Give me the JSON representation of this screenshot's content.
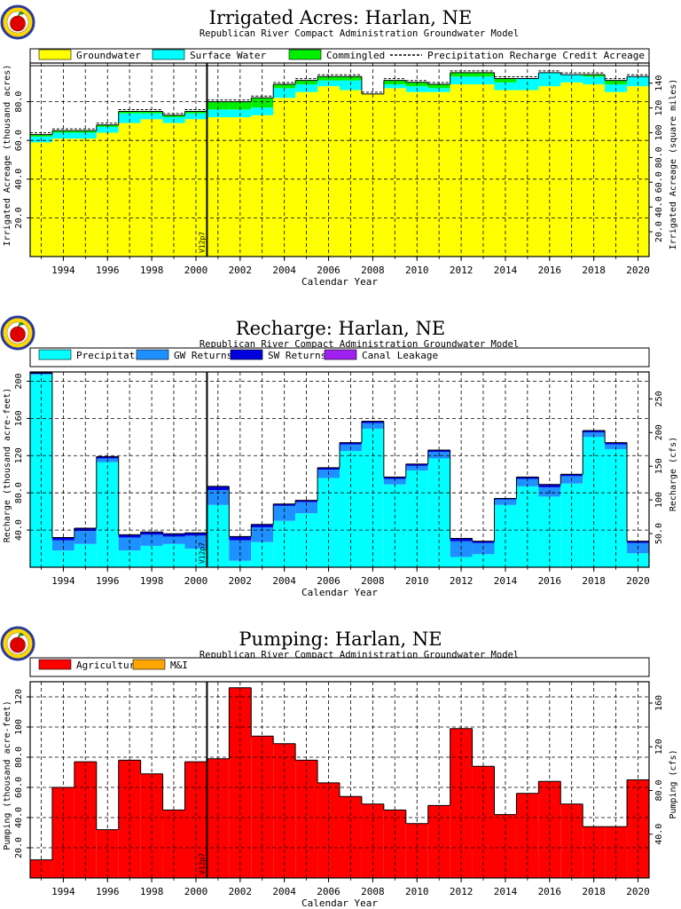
{
  "colors": {
    "groundwater": "#ffff00",
    "surface_water": "#00ffff",
    "commingled": "#00ee00",
    "precipitation": "#00ffff",
    "gw_returns": "#1e90ff",
    "sw_returns": "#0000dd",
    "canal_leakage": "#a020f0",
    "agricultural": "#ff0000",
    "mi": "#ffa500",
    "logo_ring": "#ffd700",
    "logo_outer": "#2a3a9a",
    "logo_apple": "#e00000"
  },
  "icons": [
    "apple-seal-icon"
  ],
  "marker_label": "V12p7",
  "chart_data": [
    {
      "type": "bar",
      "stacked": true,
      "title": "Irrigated  Acres:  Harlan,  NE",
      "subtitle": "Republican  River  Compact  Administration  Groundwater  Model",
      "xlabel": "Calendar  Year",
      "ylabel": "Irrigated  Acreage  (thousand  acres)",
      "y2label": "Irrigated  Acreage  (square  miles)",
      "ylim": [
        0,
        100
      ],
      "y2lim": [
        0,
        156.25
      ],
      "grid": true,
      "legend_position": "top",
      "yticks": [
        "20.0",
        "40.0",
        "60.0",
        "80.0"
      ],
      "y2ticks": [
        "20.0",
        "40.0",
        "60.0",
        "80.0",
        "100",
        "120",
        "140"
      ],
      "xticks": [
        "1994",
        "1996",
        "1998",
        "2000",
        "2002",
        "2004",
        "2006",
        "2008",
        "2010",
        "2012",
        "2014",
        "2016",
        "2018",
        "2020"
      ],
      "x": [
        1993,
        1994,
        1995,
        1996,
        1997,
        1998,
        1999,
        2000,
        2001,
        2002,
        2003,
        2004,
        2005,
        2006,
        2007,
        2008,
        2009,
        2010,
        2011,
        2012,
        2013,
        2014,
        2015,
        2016,
        2017,
        2018,
        2019,
        2020
      ],
      "series": [
        {
          "name": "Groundwater",
          "color_key": "groundwater",
          "values": [
            59,
            61,
            61,
            64,
            69,
            71,
            69,
            71,
            72,
            72,
            73,
            82,
            85,
            88,
            86,
            84,
            87,
            85,
            85,
            89,
            89,
            86,
            86,
            88,
            90,
            89,
            85,
            88
          ]
        },
        {
          "name": "Surface Water",
          "color_key": "surface_water",
          "values": [
            3,
            3,
            3,
            3,
            5,
            3,
            3,
            3,
            4,
            4,
            4,
            5,
            4,
            3,
            5,
            0,
            2,
            3,
            2,
            4,
            4,
            4,
            6,
            7,
            4,
            4,
            4,
            5
          ]
        },
        {
          "name": "Commingled",
          "color_key": "commingled",
          "values": [
            1,
            1,
            1,
            1,
            1,
            1,
            1,
            1,
            4,
            4,
            5,
            2,
            2,
            2,
            2,
            0,
            2,
            2,
            2,
            2,
            2,
            2,
            0,
            0,
            0,
            1,
            2,
            0
          ]
        }
      ],
      "legend_extra": {
        "name": "Precipitation  Recharge  Credit  Acreage",
        "style": "dashed"
      }
    },
    {
      "type": "bar",
      "stacked": true,
      "title": "Recharge:  Harlan,  NE",
      "subtitle": "Republican  River  Compact  Administration  Groundwater  Model",
      "xlabel": "Calendar  Year",
      "ylabel": "Recharge  (thousand  acre-feet)",
      "y2label": "Recharge  (cfs)",
      "ylim": [
        0,
        210
      ],
      "y2lim": [
        0,
        290
      ],
      "grid": true,
      "legend_position": "top",
      "yticks": [
        "40.0",
        "80.0",
        "120",
        "160",
        "200"
      ],
      "y2ticks": [
        "50.0",
        "100",
        "150",
        "200",
        "250"
      ],
      "xticks": [
        "1994",
        "1996",
        "1998",
        "2000",
        "2002",
        "2004",
        "2006",
        "2008",
        "2010",
        "2012",
        "2014",
        "2016",
        "2018",
        "2020"
      ],
      "x": [
        1993,
        1994,
        1995,
        1996,
        1997,
        1998,
        1999,
        2000,
        2001,
        2002,
        2003,
        2004,
        2005,
        2006,
        2007,
        2008,
        2009,
        2010,
        2011,
        2012,
        2013,
        2014,
        2015,
        2016,
        2017,
        2018,
        2019,
        2020
      ],
      "series": [
        {
          "name": "Precipitation",
          "color_key": "precipitation",
          "values": [
            207,
            18,
            25,
            113,
            18,
            23,
            25,
            20,
            67,
            7,
            27,
            50,
            58,
            96,
            125,
            149,
            89,
            104,
            117,
            11,
            14,
            67,
            87,
            76,
            90,
            140,
            127,
            15
          ]
        },
        {
          "name": "GW Returns",
          "color_key": "gw_returns",
          "values": [
            1,
            11,
            14,
            4,
            14,
            12,
            8,
            14,
            16,
            22,
            16,
            16,
            12,
            9,
            7,
            6,
            6,
            5,
            7,
            17,
            12,
            6,
            8,
            10,
            8,
            5,
            5,
            11
          ]
        },
        {
          "name": "SW Returns",
          "color_key": "sw_returns",
          "values": [
            1,
            3,
            3,
            2,
            3,
            3,
            3,
            3,
            4,
            4,
            3,
            2,
            2,
            2,
            2,
            2,
            2,
            2,
            2,
            3,
            2,
            1,
            2,
            3,
            2,
            2,
            2,
            2
          ]
        },
        {
          "name": "Canal Leakage",
          "color_key": "canal_leakage",
          "values": [
            0,
            0,
            0,
            0,
            0,
            0,
            0,
            0,
            0,
            0,
            0,
            0,
            0,
            0,
            0,
            0,
            0,
            0,
            0,
            0,
            0,
            0,
            0,
            0,
            0,
            0,
            0,
            0
          ]
        }
      ]
    },
    {
      "type": "bar",
      "stacked": true,
      "title": "Pumping:  Harlan,  NE",
      "subtitle": "Republican  River  Compact  Administration  Groundwater  Model",
      "xlabel": "Calendar  Year",
      "ylabel": "Pumping  (thousand  acre-feet)",
      "y2label": "Pumping  (cfs)",
      "ylim": [
        0,
        130
      ],
      "y2lim": [
        0,
        179.5
      ],
      "grid": true,
      "legend_position": "top",
      "yticks": [
        "20.0",
        "40.0",
        "60.0",
        "80.0",
        "100",
        "120"
      ],
      "y2ticks": [
        "40.0",
        "80.0",
        "120",
        "160"
      ],
      "xticks": [
        "1994",
        "1996",
        "1998",
        "2000",
        "2002",
        "2004",
        "2006",
        "2008",
        "2010",
        "2012",
        "2014",
        "2016",
        "2018",
        "2020"
      ],
      "x": [
        1993,
        1994,
        1995,
        1996,
        1997,
        1998,
        1999,
        2000,
        2001,
        2002,
        2003,
        2004,
        2005,
        2006,
        2007,
        2008,
        2009,
        2010,
        2011,
        2012,
        2013,
        2014,
        2015,
        2016,
        2017,
        2018,
        2019,
        2020
      ],
      "series": [
        {
          "name": "Agricultural",
          "color_key": "agricultural",
          "values": [
            12,
            60,
            77,
            32,
            78,
            69,
            45,
            77,
            79,
            126,
            94,
            89,
            78,
            63,
            54,
            49,
            45,
            36,
            48,
            99,
            74,
            42,
            56,
            64,
            49,
            34,
            34,
            65
          ]
        },
        {
          "name": "M&I",
          "color_key": "mi",
          "values": [
            0,
            0,
            0,
            0,
            0,
            0,
            0,
            0,
            0,
            0,
            0,
            0,
            0,
            0,
            0,
            0,
            0,
            0,
            0,
            0,
            0,
            0,
            0,
            0,
            0,
            0,
            0,
            0
          ]
        }
      ]
    }
  ]
}
